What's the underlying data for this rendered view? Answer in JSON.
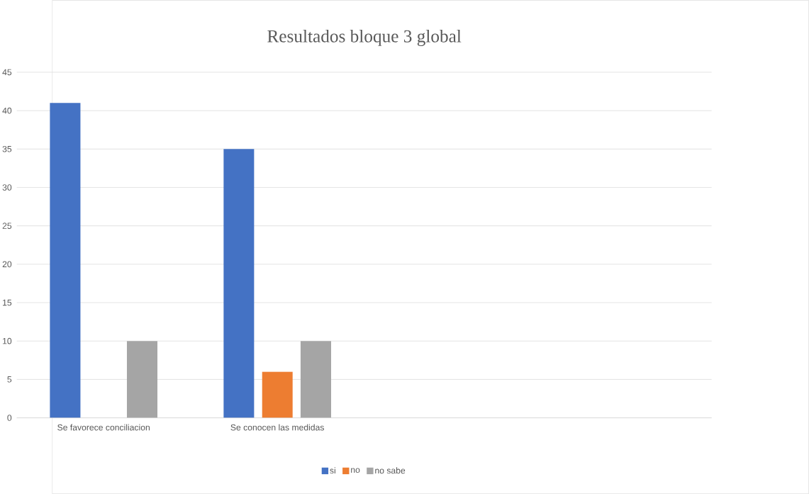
{
  "chart_data": {
    "type": "bar",
    "title": "Resultados bloque 3 global",
    "categories": [
      "Se favorece conciliacion",
      "Se conocen las medidas",
      null,
      null
    ],
    "series": [
      {
        "name": "si",
        "color": "#4472c4",
        "values": [
          41,
          35,
          null,
          null
        ]
      },
      {
        "name": "no",
        "color": "#ed7d31",
        "values": [
          null,
          6,
          null,
          null
        ]
      },
      {
        "name": "no sabe",
        "color": "#a5a5a5",
        "values": [
          10,
          10,
          null,
          null
        ]
      }
    ],
    "ylim": [
      0,
      45
    ],
    "yticks": [
      0,
      5,
      10,
      15,
      20,
      25,
      30,
      35,
      40,
      45
    ],
    "grid": "y",
    "legend": "bottom"
  }
}
